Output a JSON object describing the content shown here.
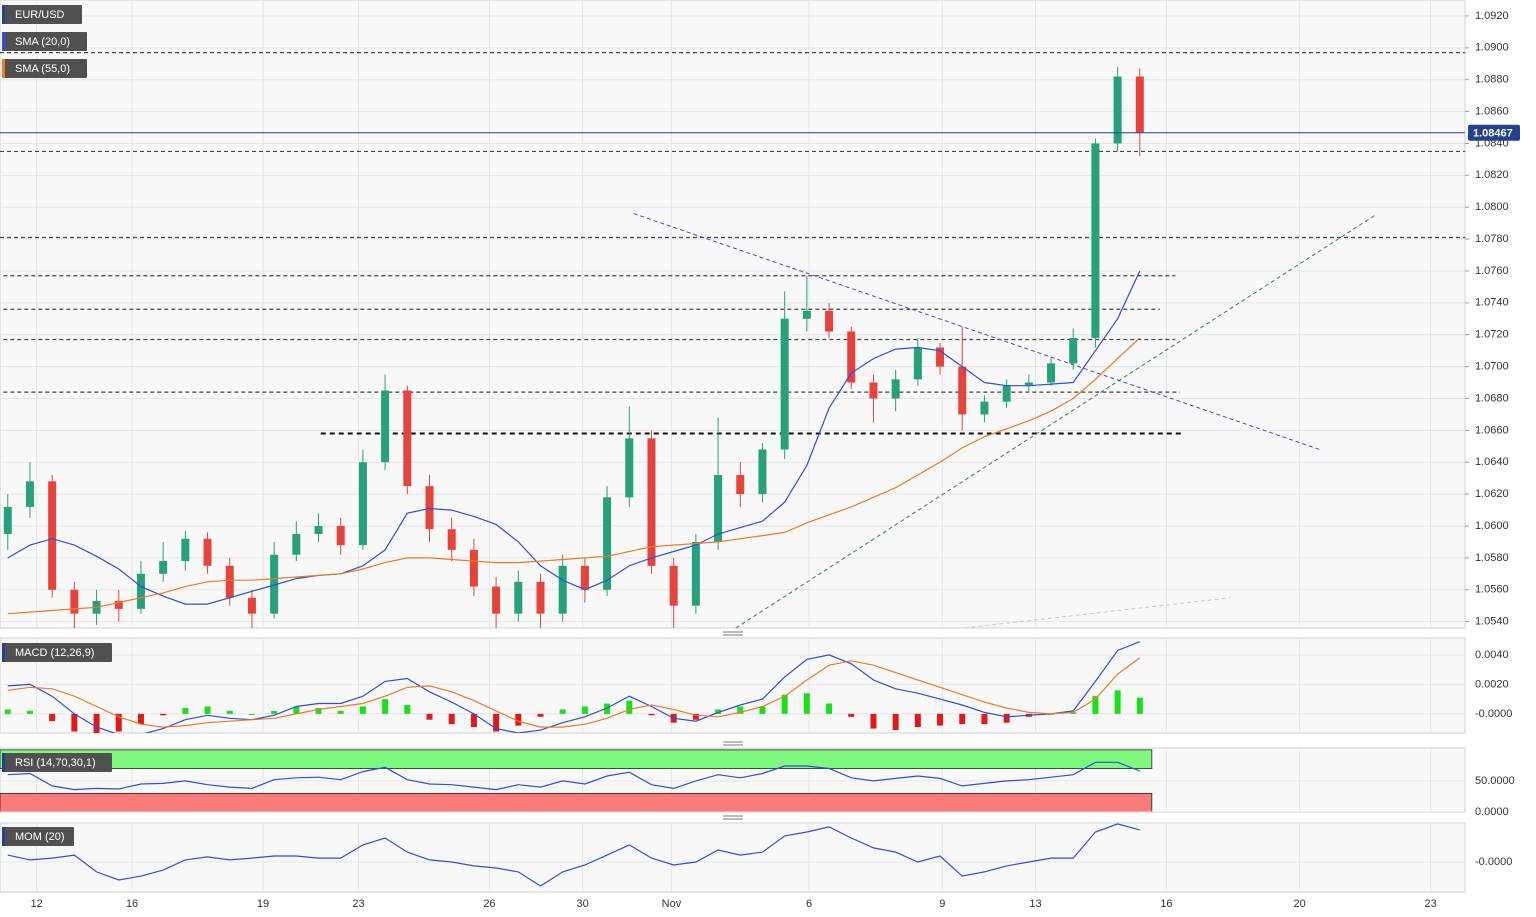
{
  "chart_data": [
    {
      "type": "candlestick",
      "title": "EUR/USD",
      "x": [
        0,
        1,
        2,
        3,
        4,
        5,
        6,
        7,
        8,
        9,
        10,
        11,
        12,
        13,
        14,
        15,
        16,
        17,
        18,
        19,
        20,
        21,
        22,
        23,
        24,
        25,
        26,
        27,
        28,
        29,
        30,
        31,
        32,
        33,
        34,
        35,
        36,
        37,
        38,
        39,
        40,
        41,
        42,
        43,
        44,
        45,
        46,
        47,
        48,
        49,
        50,
        51
      ],
      "open": [
        1.0595,
        1.0612,
        1.0628,
        1.056,
        1.0545,
        1.0553,
        1.0548,
        1.057,
        1.0578,
        1.0592,
        1.0575,
        1.0555,
        1.0545,
        1.0582,
        1.0595,
        1.06,
        1.0588,
        1.064,
        1.0685,
        1.0625,
        1.0598,
        1.0585,
        1.0562,
        1.0545,
        1.0565,
        1.0545,
        1.0575,
        1.056,
        1.0618,
        1.0655,
        1.0575,
        1.055,
        1.059,
        1.0632,
        1.062,
        1.0648,
        1.073,
        1.0735,
        1.0722,
        1.069,
        1.068,
        1.0692,
        1.0712,
        1.07,
        1.067,
        1.0678,
        1.0688,
        1.069,
        1.0702,
        1.0718,
        1.084,
        1.0882
      ],
      "high": [
        1.062,
        1.064,
        1.0632,
        1.0565,
        1.056,
        1.056,
        1.0578,
        1.059,
        1.0597,
        1.0596,
        1.058,
        1.056,
        1.059,
        1.0603,
        1.0608,
        1.0605,
        1.0648,
        1.0695,
        1.0688,
        1.0632,
        1.0605,
        1.0592,
        1.0568,
        1.0572,
        1.057,
        1.0582,
        1.058,
        1.0625,
        1.0675,
        1.066,
        1.058,
        1.0595,
        1.0668,
        1.064,
        1.0652,
        1.0747,
        1.0757,
        1.074,
        1.0725,
        1.0695,
        1.0698,
        1.0718,
        1.0715,
        1.0725,
        1.0682,
        1.0692,
        1.0695,
        1.0706,
        1.0724,
        1.0843,
        1.0888,
        1.0887
      ],
      "low": [
        1.0585,
        1.0605,
        1.0555,
        1.0532,
        1.0538,
        1.054,
        1.0545,
        1.0565,
        1.0572,
        1.057,
        1.055,
        1.0535,
        1.0542,
        1.0578,
        1.059,
        1.0582,
        1.0585,
        1.0635,
        1.062,
        1.059,
        1.0578,
        1.0556,
        1.0535,
        1.054,
        1.0535,
        1.054,
        1.0552,
        1.0556,
        1.0612,
        1.057,
        1.0535,
        1.0545,
        1.0585,
        1.0612,
        1.0615,
        1.0642,
        1.0722,
        1.0718,
        1.0686,
        1.0665,
        1.0672,
        1.0688,
        1.0695,
        1.066,
        1.0665,
        1.0674,
        1.0684,
        1.0688,
        1.0698,
        1.0712,
        1.0835,
        1.0832
      ],
      "close": [
        1.0612,
        1.0628,
        1.056,
        1.0545,
        1.0553,
        1.0548,
        1.057,
        1.0578,
        1.0592,
        1.0575,
        1.0555,
        1.0545,
        1.0582,
        1.0595,
        1.06,
        1.0588,
        1.064,
        1.0685,
        1.0625,
        1.0598,
        1.0585,
        1.0562,
        1.0545,
        1.0565,
        1.0545,
        1.0575,
        1.056,
        1.0618,
        1.0655,
        1.0575,
        1.055,
        1.059,
        1.0632,
        1.062,
        1.0648,
        1.073,
        1.0735,
        1.0722,
        1.069,
        1.068,
        1.0692,
        1.0712,
        1.07,
        1.067,
        1.0678,
        1.0688,
        1.069,
        1.0702,
        1.0718,
        1.084,
        1.0882,
        1.0847
      ],
      "up_color": "#26a17b",
      "down_color": "#e5443c",
      "series": [
        {
          "name": "SMA (20,0)",
          "color": "#2b4fe0",
          "values": [
            1.058,
            1.0588,
            1.0592,
            1.0588,
            1.0581,
            1.0573,
            1.0562,
            1.0556,
            1.0551,
            1.0551,
            1.0555,
            1.0559,
            1.0563,
            1.0567,
            1.0569,
            1.057,
            1.0575,
            1.0585,
            1.0608,
            1.0611,
            1.061,
            1.0606,
            1.0601,
            1.059,
            1.0575,
            1.0566,
            1.056,
            1.0566,
            1.0575,
            1.058,
            1.0584,
            1.0588,
            1.0595,
            1.0599,
            1.0603,
            1.0615,
            1.0638,
            1.0674,
            1.0696,
            1.0705,
            1.0711,
            1.0712,
            1.071,
            1.07,
            1.069,
            1.0688,
            1.0688,
            1.0689,
            1.069,
            1.071,
            1.073,
            1.076
          ]
        },
        {
          "name": "SMA (55,0)",
          "color": "#f07a24",
          "values": [
            1.0545,
            1.0546,
            1.0547,
            1.0548,
            1.0549,
            1.0552,
            1.0555,
            1.0558,
            1.0562,
            1.0565,
            1.0566,
            1.0566,
            1.0567,
            1.0568,
            1.0569,
            1.057,
            1.0573,
            1.0577,
            1.058,
            1.058,
            1.0579,
            1.0578,
            1.0577,
            1.0577,
            1.0578,
            1.0579,
            1.058,
            1.0581,
            1.0584,
            1.0587,
            1.0588,
            1.0589,
            1.059,
            1.0592,
            1.0594,
            1.0596,
            1.0602,
            1.0607,
            1.0612,
            1.0618,
            1.0624,
            1.0632,
            1.064,
            1.0649,
            1.0656,
            1.0661,
            1.0666,
            1.0672,
            1.068,
            1.0692,
            1.0705,
            1.0718
          ]
        }
      ],
      "levels": [
        {
          "value": 1.0897,
          "from": -0.35,
          "to": 65.65
        },
        {
          "value": 1.0835,
          "from": -0.35,
          "to": 65.65
        },
        {
          "value": 1.0781,
          "from": -0.35,
          "to": 65.65
        },
        {
          "value": 1.0757,
          "from": -0.2,
          "to": 52.6
        },
        {
          "value": 1.0736,
          "from": -0.2,
          "to": 51.9
        },
        {
          "value": 1.0717,
          "from": -0.2,
          "to": 52.6
        },
        {
          "value": 1.0684,
          "from": -0.2,
          "to": 52.8
        },
        {
          "value": 1.0658,
          "from": 14.1,
          "to": 53.0,
          "bold": true
        }
      ],
      "trendlines": [
        {
          "x": [
            28.2,
            59.1
          ],
          "y": [
            1.0796,
            1.0648
          ],
          "color": "#4a4ab8"
        },
        {
          "x": [
            32.8,
            61.6
          ],
          "y": [
            1.0536,
            1.0795
          ],
          "color": "#3c7a52"
        },
        {
          "x": [
            43.1,
            55.1
          ],
          "y": [
            1.0536,
            1.0555
          ],
          "color": "#c8c8c8"
        }
      ],
      "last_price": {
        "value": 1.08467,
        "label": "1.08467",
        "color": "#24408e"
      },
      "xlim": [
        -0.35,
        65.65
      ],
      "xticks": [
        {
          "value": 1.3,
          "label": "12"
        },
        {
          "value": 5.6,
          "label": "16"
        },
        {
          "value": 11.5,
          "label": "19"
        },
        {
          "value": 15.8,
          "label": "23"
        },
        {
          "value": 21.7,
          "label": "26"
        },
        {
          "value": 25.9,
          "label": "30"
        },
        {
          "value": 29.9,
          "label": "Nov"
        },
        {
          "value": 36.1,
          "label": "6"
        },
        {
          "value": 42.1,
          "label": "9"
        },
        {
          "value": 46.3,
          "label": "13"
        },
        {
          "value": 52.2,
          "label": "16"
        },
        {
          "value": 58.2,
          "label": "20"
        },
        {
          "value": 64.1,
          "label": "23"
        }
      ],
      "ylim": [
        1.0536,
        1.093
      ],
      "yticks": [
        {
          "value": 1.054,
          "label": "1.0540"
        },
        {
          "value": 1.056,
          "label": "1.0560"
        },
        {
          "value": 1.058,
          "label": "1.0580"
        },
        {
          "value": 1.06,
          "label": "1.0600"
        },
        {
          "value": 1.062,
          "label": "1.0620"
        },
        {
          "value": 1.064,
          "label": "1.0640"
        },
        {
          "value": 1.066,
          "label": "1.0660"
        },
        {
          "value": 1.068,
          "label": "1.0680"
        },
        {
          "value": 1.07,
          "label": "1.0700"
        },
        {
          "value": 1.072,
          "label": "1.0720"
        },
        {
          "value": 1.074,
          "label": "1.0740"
        },
        {
          "value": 1.076,
          "label": "1.0760"
        },
        {
          "value": 1.078,
          "label": "1.0780"
        },
        {
          "value": 1.08,
          "label": "1.0800"
        },
        {
          "value": 1.082,
          "label": "1.0820"
        },
        {
          "value": 1.084,
          "label": "1.0840"
        },
        {
          "value": 1.086,
          "label": "1.0860"
        },
        {
          "value": 1.088,
          "label": "1.0880"
        },
        {
          "value": 1.09,
          "label": "1.0900"
        },
        {
          "value": 1.092,
          "label": "1.0920"
        }
      ],
      "grid": true
    },
    {
      "type": "macd",
      "title": "MACD (12,26,9)",
      "series": [
        {
          "color": "#2b4fe0",
          "values": [
            0.0019,
            0.002,
            0.0012,
            0.0,
            -0.0009,
            -0.0014,
            -0.0014,
            -0.001,
            -0.0004,
            -0.0001,
            -0.0003,
            -0.0004,
            -0.0001,
            0.0005,
            0.0007,
            0.0007,
            0.0012,
            0.0022,
            0.0024,
            0.0015,
            0.0008,
            0.0,
            -0.001,
            -0.0013,
            -0.0011,
            -0.0006,
            -0.0002,
            0.0004,
            0.0012,
            0.0005,
            -0.0003,
            -0.0005,
            0.0001,
            0.0006,
            0.001,
            0.0025,
            0.0037,
            0.004,
            0.0034,
            0.0023,
            0.0017,
            0.0014,
            0.001,
            0.0006,
            0.0001,
            -0.0002,
            -0.0001,
            0.0,
            0.0002,
            0.0022,
            0.0043,
            0.0049
          ]
        },
        {
          "color": "#f07a24",
          "values": [
            0.0016,
            0.0018,
            0.0017,
            0.0012,
            0.0005,
            -0.0002,
            -0.0007,
            -0.0009,
            -0.0008,
            -0.0006,
            -0.0005,
            -0.0004,
            -0.0003,
            0.0,
            0.0003,
            0.0005,
            0.0007,
            0.0012,
            0.0018,
            0.0019,
            0.0015,
            0.0009,
            0.0002,
            -0.0005,
            -0.0009,
            -0.0009,
            -0.0007,
            -0.0003,
            0.0003,
            0.0006,
            0.0003,
            -0.0001,
            -0.0002,
            0.0001,
            0.0005,
            0.0012,
            0.0023,
            0.0033,
            0.0036,
            0.0033,
            0.0028,
            0.0023,
            0.0018,
            0.0013,
            0.0008,
            0.0004,
            0.0001,
            0.0,
            0.0001,
            0.001,
            0.0027,
            0.0038
          ]
        }
      ],
      "histogram": [
        0.0003,
        0.0002,
        -0.0005,
        -0.0012,
        -0.0014,
        -0.0012,
        -0.0007,
        -0.0001,
        0.0004,
        0.0005,
        0.0002,
        0.0,
        0.0002,
        0.0005,
        0.0004,
        0.0002,
        0.0005,
        0.001,
        0.0006,
        -0.0004,
        -0.0007,
        -0.0009,
        -0.0012,
        -0.0008,
        -0.0002,
        0.0003,
        0.0005,
        0.0007,
        0.0009,
        -0.0001,
        -0.0006,
        -0.0004,
        0.0003,
        0.0005,
        0.0005,
        0.0013,
        0.0014,
        0.0007,
        -0.0002,
        -0.001,
        -0.0011,
        -0.0009,
        -0.0008,
        -0.0007,
        -0.0007,
        -0.0006,
        -0.0002,
        0.0,
        0.0001,
        0.0012,
        0.0016,
        0.0011
      ],
      "positive_color": "#19e019",
      "negative_color": "#e01919",
      "ylim": [
        -0.0013,
        0.00515
      ],
      "yticks": [
        {
          "value": 0.004,
          "label": "0.0040"
        },
        {
          "value": 0.002,
          "label": "0.0020"
        },
        {
          "value": 0,
          "label": "-0.0000"
        }
      ]
    },
    {
      "type": "rsi",
      "title": "RSI (14,70,30,1)",
      "series": [
        {
          "color": "#2b4fe0",
          "values": [
            60,
            62,
            42,
            36,
            38,
            37,
            45,
            46,
            50,
            44,
            40,
            38,
            52,
            55,
            56,
            52,
            65,
            72,
            52,
            45,
            44,
            40,
            36,
            44,
            40,
            50,
            45,
            58,
            64,
            44,
            38,
            50,
            60,
            55,
            62,
            74,
            74,
            70,
            55,
            50,
            54,
            58,
            54,
            42,
            46,
            50,
            52,
            56,
            60,
            80,
            80,
            66
          ]
        }
      ],
      "bands": [
        {
          "from": 70,
          "to": 100,
          "color": "#7dfa7d"
        },
        {
          "from": 0,
          "to": 30,
          "color": "#f77b7b"
        }
      ],
      "ylim": [
        0,
        103
      ],
      "yticks": [
        {
          "value": 50,
          "label": "50.0000"
        },
        {
          "value": 0,
          "label": "0.0000"
        }
      ]
    },
    {
      "type": "mom",
      "title": "MOM (20)",
      "series": [
        {
          "color": "#2b4fe0",
          "values": [
            0.0023,
            0.0007,
            0.0013,
            0.0023,
            -0.0033,
            -0.006,
            -0.0047,
            -0.0027,
            0.0007,
            0.0017,
            0.0007,
            0.0013,
            0.002,
            0.002,
            0.0013,
            0.0013,
            0.0057,
            0.008,
            0.0033,
            0.0007,
            0.0,
            -0.0013,
            -0.002,
            -0.0033,
            -0.008,
            -0.0033,
            -0.001,
            0.0023,
            0.0057,
            0.0013,
            -0.001,
            0.0,
            0.004,
            0.0023,
            0.0033,
            0.0087,
            0.01,
            0.0117,
            0.008,
            0.0047,
            0.0033,
            0.0,
            0.002,
            -0.0047,
            -0.0033,
            -0.0013,
            0.0,
            0.0013,
            0.0013,
            0.01,
            0.0127,
            0.0107
          ]
        }
      ],
      "ylim": [
        -0.01,
        0.013
      ],
      "yticks": [
        {
          "value": 0,
          "label": "-0.0000"
        }
      ]
    }
  ]
}
